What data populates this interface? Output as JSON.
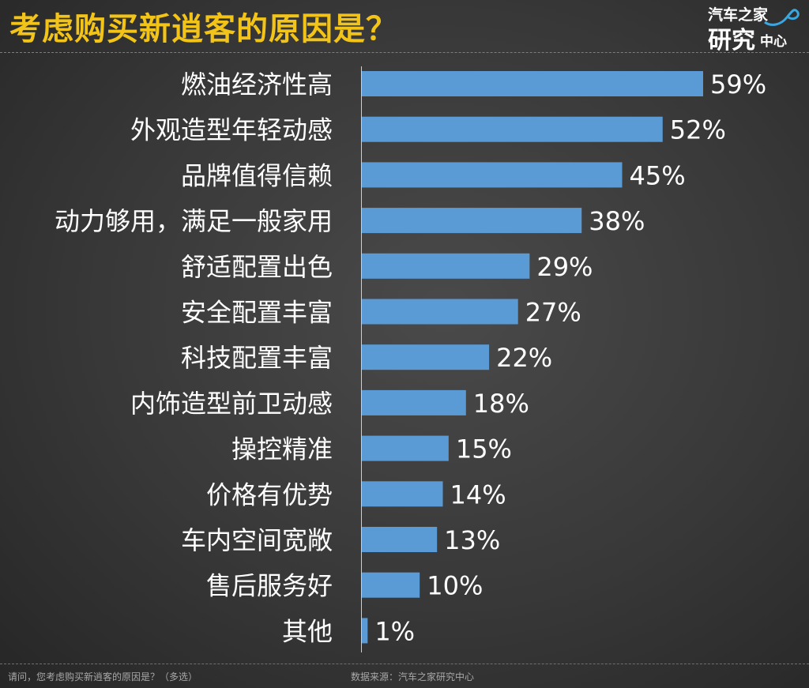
{
  "header": {
    "title": "考虑购买新逍客的原因是？"
  },
  "logo": {
    "line1": "汽车之家",
    "line2": "研究",
    "line3": "中心"
  },
  "footer": {
    "question": "请问，您考虑购买新逍客的原因是？（多选）",
    "source": "数据来源：汽车之家研究中心"
  },
  "chart_data": {
    "type": "bar",
    "orientation": "horizontal",
    "categories": [
      "燃油经济性高",
      "外观造型年轻动感",
      "品牌值得信赖",
      "动力够用，满足一般家用",
      "舒适配置出色",
      "安全配置丰富",
      "科技配置丰富",
      "内饰造型前卫动感",
      "操控精准",
      "价格有优势",
      "车内空间宽敞",
      "售后服务好",
      "其他"
    ],
    "values": [
      59,
      52,
      45,
      38,
      29,
      27,
      22,
      18,
      15,
      14,
      13,
      10,
      1
    ],
    "value_labels": [
      "59%",
      "52%",
      "45%",
      "38%",
      "29%",
      "27%",
      "22%",
      "18%",
      "15%",
      "14%",
      "13%",
      "10%",
      "1%"
    ],
    "unit": "%",
    "xlim": [
      0,
      59
    ],
    "bar_color": "#5b9bd5",
    "title": "考虑购买新逍客的原因是？",
    "xlabel": "",
    "ylabel": "",
    "grid": false
  }
}
